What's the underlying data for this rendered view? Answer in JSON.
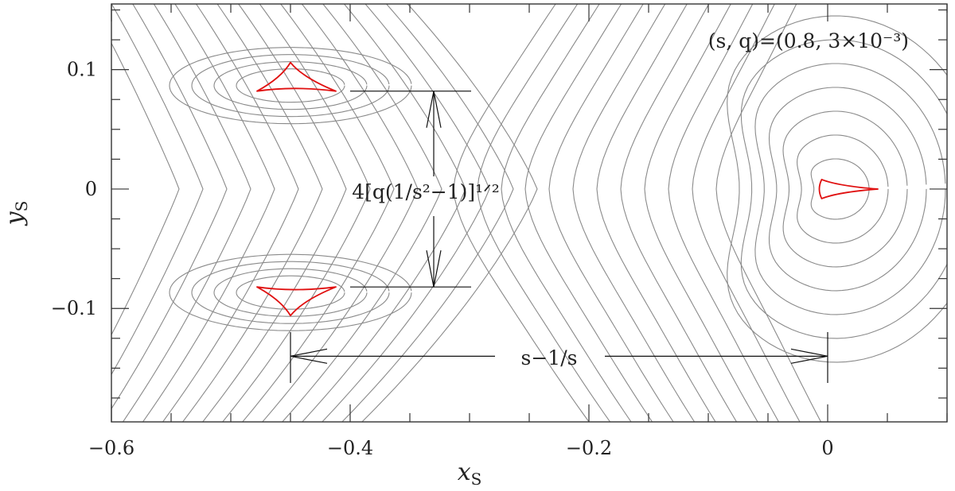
{
  "chart_data": {
    "type": "line",
    "xlabel": "x",
    "xlabel_sub": "S",
    "ylabel": "y",
    "ylabel_sub": "S",
    "xlim": [
      -0.6,
      0.1
    ],
    "ylim": [
      -0.195,
      0.155
    ],
    "x_ticks": [
      {
        "value": -0.6,
        "label": "−0.6"
      },
      {
        "value": -0.4,
        "label": "−0.4"
      },
      {
        "value": -0.2,
        "label": "−0.2"
      },
      {
        "value": 0.0,
        "label": "0"
      }
    ],
    "y_ticks": [
      {
        "value": 0.1,
        "label": "0.1"
      },
      {
        "value": 0.0,
        "label": "0"
      },
      {
        "value": -0.1,
        "label": "−0.1"
      }
    ],
    "x_minor_step": 0.05,
    "y_minor_step": 0.025,
    "parameters_label": "(s, q)=(0.8, 3×10⁻³)",
    "planetary_caustics": [
      {
        "center": [
          -0.45,
          0.092
        ],
        "cusps": [
          [
            -0.45,
            0.106
          ],
          [
            -0.478,
            0.082
          ],
          [
            -0.412,
            0.082
          ]
        ]
      },
      {
        "center": [
          -0.45,
          -0.092
        ],
        "cusps": [
          [
            -0.45,
            -0.106
          ],
          [
            -0.478,
            -0.082
          ],
          [
            -0.412,
            -0.082
          ]
        ]
      }
    ],
    "central_caustic": {
      "cusps": [
        [
          -0.005,
          0.008
        ],
        [
          -0.005,
          -0.008
        ],
        [
          0.042,
          0.0
        ],
        [
          0.002,
          0.0
        ]
      ]
    },
    "vertical_dimension": {
      "x": -0.33,
      "y_top": 0.082,
      "y_bottom": -0.082,
      "label": "4[q(1/s²−1)]¹ᐟ²"
    },
    "horizontal_dimension": {
      "y": -0.14,
      "x_left": -0.45,
      "x_right": 0.0,
      "label": "s−1/s"
    },
    "contours": "gray magnification contour lines of the lensing map"
  }
}
